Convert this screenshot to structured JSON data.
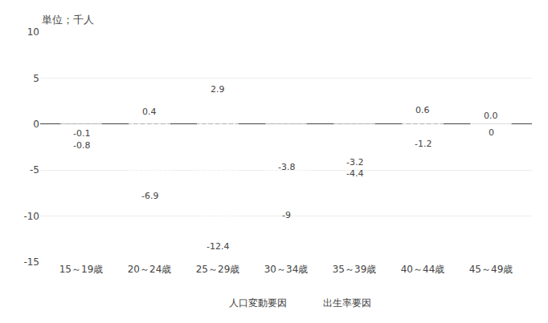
{
  "chart_data": {
    "type": "bar",
    "annotations": [
      "単位；千人"
    ],
    "categories": [
      "15～19歳",
      "20～24歳",
      "25～29歳",
      "30～34歳",
      "35～39歳",
      "40～44歳",
      "45～49歳"
    ],
    "series": [
      {
        "name": "人口変動要因",
        "color": "#5b9bd5",
        "values": [
          -0.1,
          0.4,
          2.9,
          -3.8,
          -3.2,
          0.6,
          0.0
        ],
        "value_labels": [
          "-0.1",
          "0.4",
          "2.9",
          "-3.8",
          "-3.2",
          "0.6",
          "0.0"
        ]
      },
      {
        "name": "出生率要因",
        "color": "#548235",
        "values": [
          -0.8,
          -6.9,
          -12.4,
          -9.0,
          -4.4,
          -1.2,
          0
        ],
        "value_labels": [
          "-0.8",
          "-6.9",
          "-12.4",
          "-9",
          "-4.4",
          "-1.2",
          "0"
        ]
      }
    ],
    "ylim": [
      -15,
      10
    ],
    "yticks": [
      -15,
      -10,
      -5,
      0,
      5,
      10
    ],
    "grid": true,
    "legend": "bottom",
    "data_labels": true
  }
}
